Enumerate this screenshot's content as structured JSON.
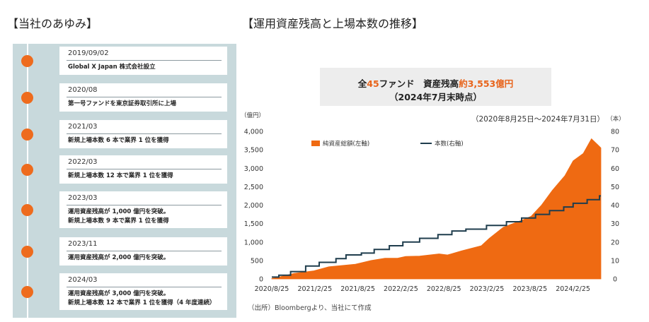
{
  "left": {
    "title": "【当社のあゆみ】",
    "events": [
      {
        "date": "2019/09/02",
        "lines": [
          "Global X Japan 株式会社設立"
        ]
      },
      {
        "date": "2020/08",
        "lines": [
          "第一号ファンドを東京証券取引所に上場"
        ]
      },
      {
        "date": "2021/03",
        "lines": [
          "新規上場本数 6 本で業界 1 位を獲得"
        ]
      },
      {
        "date": "2022/03",
        "lines": [
          "新規上場本数 12 本で業界 1 位を獲得"
        ]
      },
      {
        "date": "2023/03",
        "lines": [
          "運用資産残高が 1,000 億円を突破。",
          "新規上場本数 9 本で業界 1 位を獲得"
        ]
      },
      {
        "date": "2023/11",
        "lines": [
          "運用資産残高が 2,000 億円を突破。"
        ]
      },
      {
        "date": "2024/03",
        "lines": [
          "運用資産残高が 3,000 億円を突破。",
          "新規上場本数 12 本で業界 1 位を獲得（4 年度連続）"
        ]
      }
    ]
  },
  "right": {
    "title": "【運用資産残高と上場本数の推移】",
    "summary": {
      "line1_a": "全",
      "line1_b": "45",
      "line1_c": "ファンド　資産残高",
      "line1_d": "約3,553億円",
      "line2": "（2024年7月末時点）"
    },
    "source": "（出所）Bloombergより、当社にて作成"
  },
  "chart_data": {
    "type": "area",
    "period": "（2020年8月25日～2024年7月31日）",
    "y_left_unit": "（億円）",
    "y_right_unit": "（本）",
    "ylim_left": [
      0,
      4000
    ],
    "yticks_left": [
      0,
      500,
      1000,
      1500,
      2000,
      2500,
      3000,
      3500,
      4000
    ],
    "ylim_right": [
      0,
      80
    ],
    "yticks_right": [
      0,
      10,
      20,
      30,
      40,
      50,
      60,
      70,
      80
    ],
    "x_tick_labels": [
      "2020/8/25",
      "2021/2/25",
      "2021/8/25",
      "2022/2/25",
      "2022/8/25",
      "2023/2/25",
      "2023/8/25",
      "2024/2/25"
    ],
    "x_range": [
      "2020-08-25",
      "2024-07-31"
    ],
    "legend_placement": "top-left",
    "colors": {
      "aum": "#ef6a12",
      "funds": "#1f3d4d",
      "accent": "#e8631a"
    },
    "series": [
      {
        "name": "純資産総額(左軸)",
        "axis": "left",
        "type": "area",
        "points": [
          [
            "2020-08-25",
            10
          ],
          [
            "2020-10-01",
            60
          ],
          [
            "2020-12-01",
            150
          ],
          [
            "2021-02-25",
            220
          ],
          [
            "2021-05-01",
            330
          ],
          [
            "2021-08-25",
            400
          ],
          [
            "2021-11-01",
            500
          ],
          [
            "2022-01-01",
            560
          ],
          [
            "2022-02-25",
            560
          ],
          [
            "2022-04-01",
            610
          ],
          [
            "2022-06-01",
            620
          ],
          [
            "2022-08-25",
            680
          ],
          [
            "2022-10-01",
            650
          ],
          [
            "2022-12-01",
            760
          ],
          [
            "2023-02-25",
            900
          ],
          [
            "2023-04-01",
            1100
          ],
          [
            "2023-06-01",
            1400
          ],
          [
            "2023-08-25",
            1600
          ],
          [
            "2023-10-01",
            1700
          ],
          [
            "2023-11-15",
            2000
          ],
          [
            "2024-01-01",
            2400
          ],
          [
            "2024-02-25",
            2800
          ],
          [
            "2024-04-01",
            3200
          ],
          [
            "2024-05-15",
            3400
          ],
          [
            "2024-06-20",
            3800
          ],
          [
            "2024-07-15",
            3650
          ],
          [
            "2024-07-31",
            3553
          ]
        ]
      },
      {
        "name": "本数(右軸)",
        "axis": "right",
        "type": "step",
        "points": [
          [
            "2020-08-25",
            1
          ],
          [
            "2020-09-25",
            2
          ],
          [
            "2020-11-15",
            4
          ],
          [
            "2021-01-20",
            7
          ],
          [
            "2021-03-20",
            9
          ],
          [
            "2021-06-01",
            11
          ],
          [
            "2021-07-15",
            13
          ],
          [
            "2021-09-20",
            14
          ],
          [
            "2021-11-15",
            16
          ],
          [
            "2022-01-20",
            18
          ],
          [
            "2022-03-20",
            20
          ],
          [
            "2022-06-01",
            22
          ],
          [
            "2022-08-20",
            24
          ],
          [
            "2022-10-20",
            26
          ],
          [
            "2022-12-20",
            27
          ],
          [
            "2023-03-20",
            29
          ],
          [
            "2023-06-15",
            31
          ],
          [
            "2023-08-20",
            33
          ],
          [
            "2023-10-20",
            35
          ],
          [
            "2023-12-20",
            37
          ],
          [
            "2024-02-20",
            39
          ],
          [
            "2024-04-01",
            41
          ],
          [
            "2024-06-01",
            43
          ],
          [
            "2024-07-25",
            45
          ],
          [
            "2024-07-31",
            45
          ]
        ]
      }
    ]
  }
}
